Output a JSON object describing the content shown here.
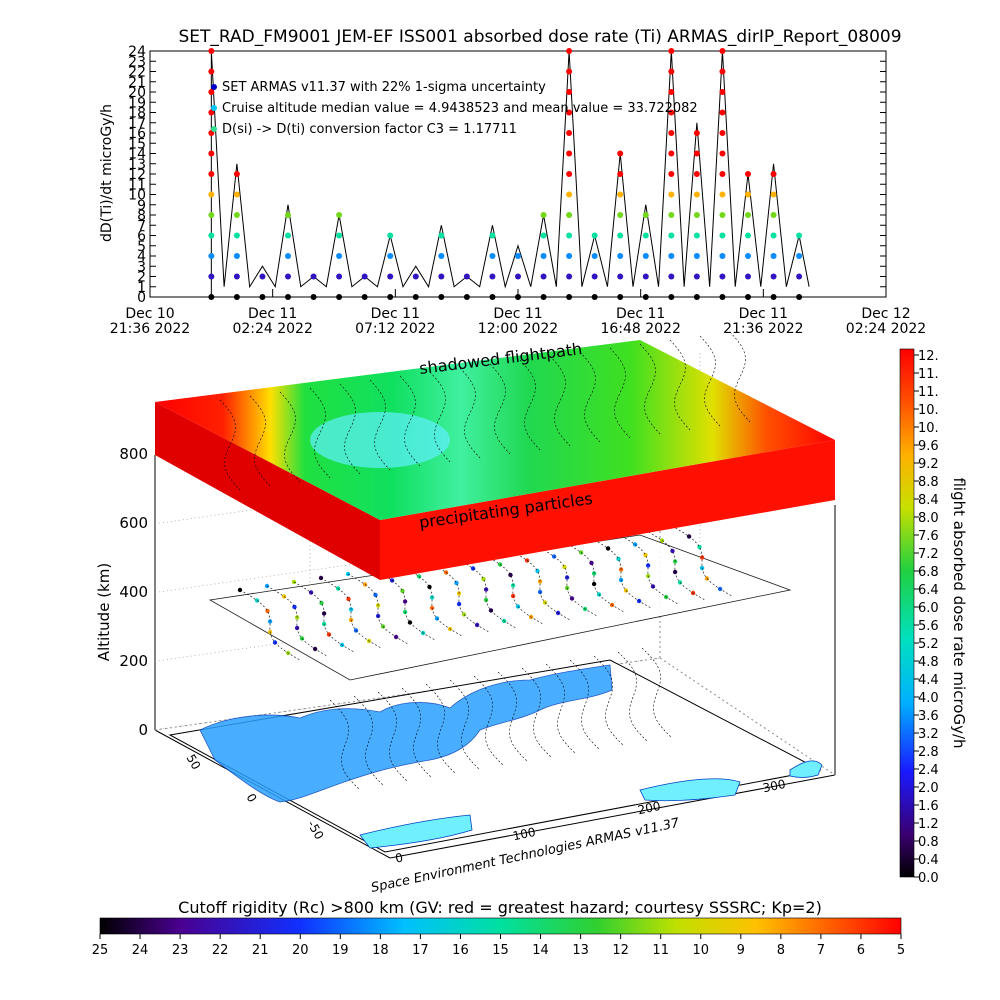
{
  "title": "SET_RAD_FM9001  JEM-EF ISS001 absorbed dose rate (Ti) ARMAS_dirIP_Report_08009",
  "top_chart": {
    "ylabel": "dD(Ti)/dt microGy/h",
    "ytick_labels": [
      "0",
      "1",
      "2",
      "3",
      "4",
      "5",
      "6",
      "7",
      "8",
      "9",
      "10",
      "11",
      "12",
      "13",
      "14",
      "15",
      "16",
      "17",
      "18",
      "19",
      "20",
      "21",
      "22",
      "23",
      "24"
    ],
    "xtick_labels": [
      {
        "line1": "Dec 10",
        "line2": "21:36 2022"
      },
      {
        "line1": "Dec 11",
        "line2": "02:24 2022"
      },
      {
        "line1": "Dec 11",
        "line2": "07:12 2022"
      },
      {
        "line1": "Dec 11",
        "line2": "12:00 2022"
      },
      {
        "line1": "Dec 11",
        "line2": "16:48 2022"
      },
      {
        "line1": "Dec 11",
        "line2": "21:36 2022"
      },
      {
        "line1": "Dec 12",
        "line2": "02:24 2022"
      }
    ],
    "legend": [
      {
        "text": "SET ARMAS v11.37 with 22% 1-sigma uncertainty",
        "color": "#0000cc"
      },
      {
        "text": "Cruise altitude median value = 4.9438523 and mean value = 33.722082",
        "color": "#00c8ff"
      },
      {
        "text": "D(si) -> D(ti) conversion factor C3 = 1.17711",
        "color": "#30e090"
      }
    ]
  },
  "chart_data": [
    {
      "type": "line",
      "title": "SET_RAD_FM9001  JEM-EF ISS001 absorbed dose rate (Ti) ARMAS_dirIP_Report_08009",
      "ylabel": "dD(Ti)/dt microGy/h",
      "ylim": [
        0,
        24
      ],
      "xlim": [
        "2022-12-10 21:36",
        "2022-12-12 02:24"
      ],
      "x": [
        "2022-12-11 00:00",
        "2022-12-11 01:00",
        "2022-12-11 02:00",
        "2022-12-11 03:00",
        "2022-12-11 04:00",
        "2022-12-11 05:00",
        "2022-12-11 06:00",
        "2022-12-11 07:00",
        "2022-12-11 08:00",
        "2022-12-11 09:00",
        "2022-12-11 10:00",
        "2022-12-11 11:00",
        "2022-12-11 12:00",
        "2022-12-11 13:00",
        "2022-12-11 14:00",
        "2022-12-11 15:00",
        "2022-12-11 16:00",
        "2022-12-11 17:00",
        "2022-12-11 18:00",
        "2022-12-11 19:00",
        "2022-12-11 20:00",
        "2022-12-11 21:00",
        "2022-12-11 22:00",
        "2022-12-11 23:00"
      ],
      "series": [
        {
          "name": "SET ARMAS v11.37 with 22% 1-sigma uncertainty",
          "values": [
            24,
            13,
            3,
            9,
            2,
            8,
            2,
            6,
            3,
            7,
            2,
            7,
            5,
            8,
            24,
            6,
            14,
            9,
            24,
            17,
            24,
            12,
            13,
            6
          ]
        }
      ]
    },
    {
      "type": "heatmap",
      "zlabel": "Altitude (km)",
      "ztick_labels": [
        "0",
        "200",
        "400",
        "600",
        "800"
      ],
      "xtick_labels": [
        "0",
        "100",
        "200",
        "300"
      ],
      "ytick_labels": [
        "-50",
        "0",
        "50"
      ],
      "annotations": [
        "shadowed flightpath",
        "precipitating particles"
      ],
      "credit": "Space Environment Technologies ARMAS v11.37"
    }
  ],
  "colorbar_right": {
    "label": "flight absorbed dose rate microGy/h",
    "tick_labels": [
      "12.",
      "11.",
      "11.",
      "10.",
      "10.",
      "9.6",
      "9.2",
      "8.8",
      "8.4",
      "8.0",
      "7.6",
      "7.2",
      "6.8",
      "6.4",
      "6.0",
      "5.6",
      "5.2",
      "4.8",
      "4.4",
      "4.0",
      "3.6",
      "3.2",
      "2.8",
      "2.4",
      "2.0",
      "1.6",
      "1.2",
      "0.8",
      "0.4",
      "0.0"
    ]
  },
  "colorbar_bottom": {
    "label": "Cutoff rigidity (Rc) >800 km (GV: red = greatest hazard; courtesy SSSRC; Kp=2)",
    "tick_labels": [
      "25",
      "24",
      "23",
      "22",
      "21",
      "20",
      "19",
      "18",
      "17",
      "16",
      "15",
      "14",
      "13",
      "12",
      "11",
      "10",
      "9",
      "8",
      "7",
      "6",
      "5"
    ]
  }
}
